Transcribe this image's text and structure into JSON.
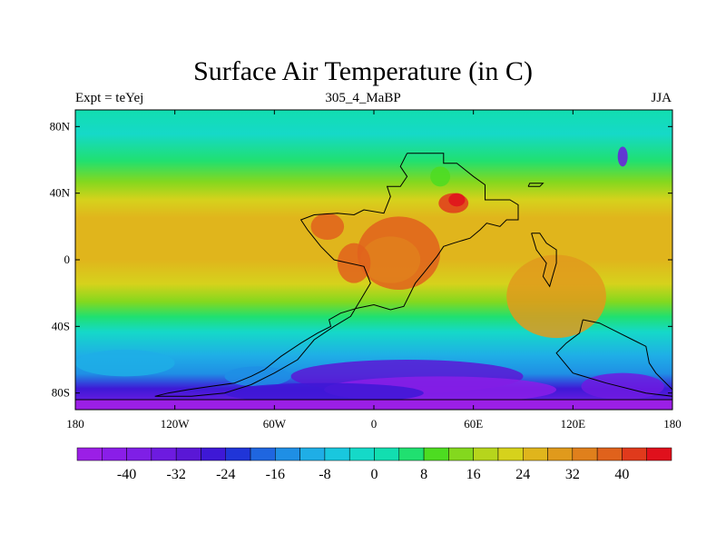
{
  "title": "Surface Air Temperature (in C)",
  "subtitle_left": "Expt = teYej",
  "subtitle_center": "305_4_MaBP",
  "subtitle_right": "JJA",
  "map": {
    "projection": "cylindrical-equidistant",
    "lon_range": [
      -180,
      180
    ],
    "lat_range": [
      -90,
      90
    ],
    "x_ticks": [
      {
        "lon": -180,
        "label": "180"
      },
      {
        "lon": -120,
        "label": "120W"
      },
      {
        "lon": -60,
        "label": "60W"
      },
      {
        "lon": 0,
        "label": "0"
      },
      {
        "lon": 60,
        "label": "60E"
      },
      {
        "lon": 120,
        "label": "120E"
      },
      {
        "lon": 180,
        "label": "180"
      }
    ],
    "y_ticks": [
      {
        "lat": 80,
        "label": "80N"
      },
      {
        "lat": 40,
        "label": "40N"
      },
      {
        "lat": 0,
        "label": "0"
      },
      {
        "lat": -40,
        "label": "40S"
      },
      {
        "lat": -80,
        "label": "80S"
      }
    ],
    "coastline": [
      [
        20,
        64
      ],
      [
        42,
        64
      ],
      [
        42,
        58
      ],
      [
        50,
        58
      ],
      [
        60,
        50
      ],
      [
        67,
        45
      ],
      [
        67,
        36
      ],
      [
        82,
        36
      ],
      [
        87,
        33
      ],
      [
        87,
        24
      ],
      [
        80,
        24
      ],
      [
        76,
        20
      ],
      [
        68,
        22
      ],
      [
        64,
        18
      ],
      [
        58,
        13
      ],
      [
        48,
        10
      ],
      [
        42,
        8
      ],
      [
        38,
        2
      ],
      [
        30,
        -8
      ],
      [
        25,
        -14
      ],
      [
        18,
        -28
      ],
      [
        10,
        -30
      ],
      [
        0,
        -27
      ],
      [
        -10,
        -29
      ],
      [
        -20,
        -32
      ],
      [
        -27,
        -36
      ],
      [
        -26,
        -40
      ],
      [
        -34,
        -44
      ],
      [
        -44,
        -50
      ],
      [
        -56,
        -58
      ],
      [
        -66,
        -66
      ],
      [
        -74,
        -70
      ],
      [
        -84,
        -74
      ],
      [
        -98,
        -76
      ],
      [
        -112,
        -78
      ],
      [
        -124,
        -80
      ],
      [
        -132,
        -82
      ],
      [
        -110,
        -82
      ],
      [
        -90,
        -80
      ],
      [
        -74,
        -75
      ],
      [
        -60,
        -68
      ],
      [
        -46,
        -60
      ],
      [
        -36,
        -48
      ],
      [
        -24,
        -40
      ],
      [
        -14,
        -34
      ],
      [
        -8,
        -24
      ],
      [
        -2,
        -14
      ],
      [
        -6,
        -4
      ],
      [
        -24,
        0
      ],
      [
        -32,
        8
      ],
      [
        -40,
        18
      ],
      [
        -44,
        24
      ],
      [
        -36,
        27
      ],
      [
        -22,
        28
      ],
      [
        -12,
        27
      ],
      [
        -6,
        30
      ],
      [
        6,
        28
      ],
      [
        10,
        38
      ],
      [
        8,
        44
      ],
      [
        16,
        44
      ],
      [
        20,
        50
      ],
      [
        16,
        56
      ],
      [
        20,
        64
      ]
    ],
    "islands": [
      [
        [
          93,
          44
        ],
        [
          100,
          44
        ],
        [
          102,
          46
        ],
        [
          94,
          46
        ],
        [
          93,
          44
        ]
      ],
      [
        [
          95,
          16
        ],
        [
          100,
          16
        ],
        [
          104,
          10
        ],
        [
          110,
          6
        ],
        [
          110,
          -2
        ],
        [
          106,
          -16
        ],
        [
          102,
          -10
        ],
        [
          104,
          -2
        ],
        [
          98,
          6
        ],
        [
          95,
          16
        ]
      ],
      [
        [
          126,
          -36
        ],
        [
          136,
          -38
        ],
        [
          148,
          -44
        ],
        [
          156,
          -48
        ],
        [
          164,
          -52
        ],
        [
          166,
          -62
        ],
        [
          170,
          -68
        ],
        [
          176,
          -74
        ],
        [
          180,
          -78
        ],
        [
          180,
          -82
        ],
        [
          164,
          -80
        ],
        [
          140,
          -74
        ],
        [
          120,
          -68
        ],
        [
          110,
          -56
        ],
        [
          116,
          -50
        ],
        [
          124,
          -44
        ],
        [
          126,
          -36
        ]
      ]
    ],
    "antarctic_coast_lat": -84
  },
  "colorbar": {
    "colors": [
      "#9b1fe6",
      "#8a1ee8",
      "#7f1fe6",
      "#6d1be0",
      "#5a17d6",
      "#3e18d6",
      "#2035d8",
      "#1f66e0",
      "#1f8fe5",
      "#1faee6",
      "#19c7de",
      "#15d9c8",
      "#12deb0",
      "#20e070",
      "#4ddc21",
      "#84d81e",
      "#b6d51c",
      "#d6d21c",
      "#e0b51c",
      "#e09a1c",
      "#e0801c",
      "#e0621c",
      "#e03a1c",
      "#e0101c"
    ],
    "labels": [
      "-40",
      "-32",
      "-24",
      "-16",
      "-8",
      "0",
      "8",
      "16",
      "24",
      "32",
      "40"
    ],
    "label_bin_index": [
      2,
      4,
      6,
      8,
      10,
      12,
      14,
      16,
      18,
      20,
      22
    ]
  }
}
